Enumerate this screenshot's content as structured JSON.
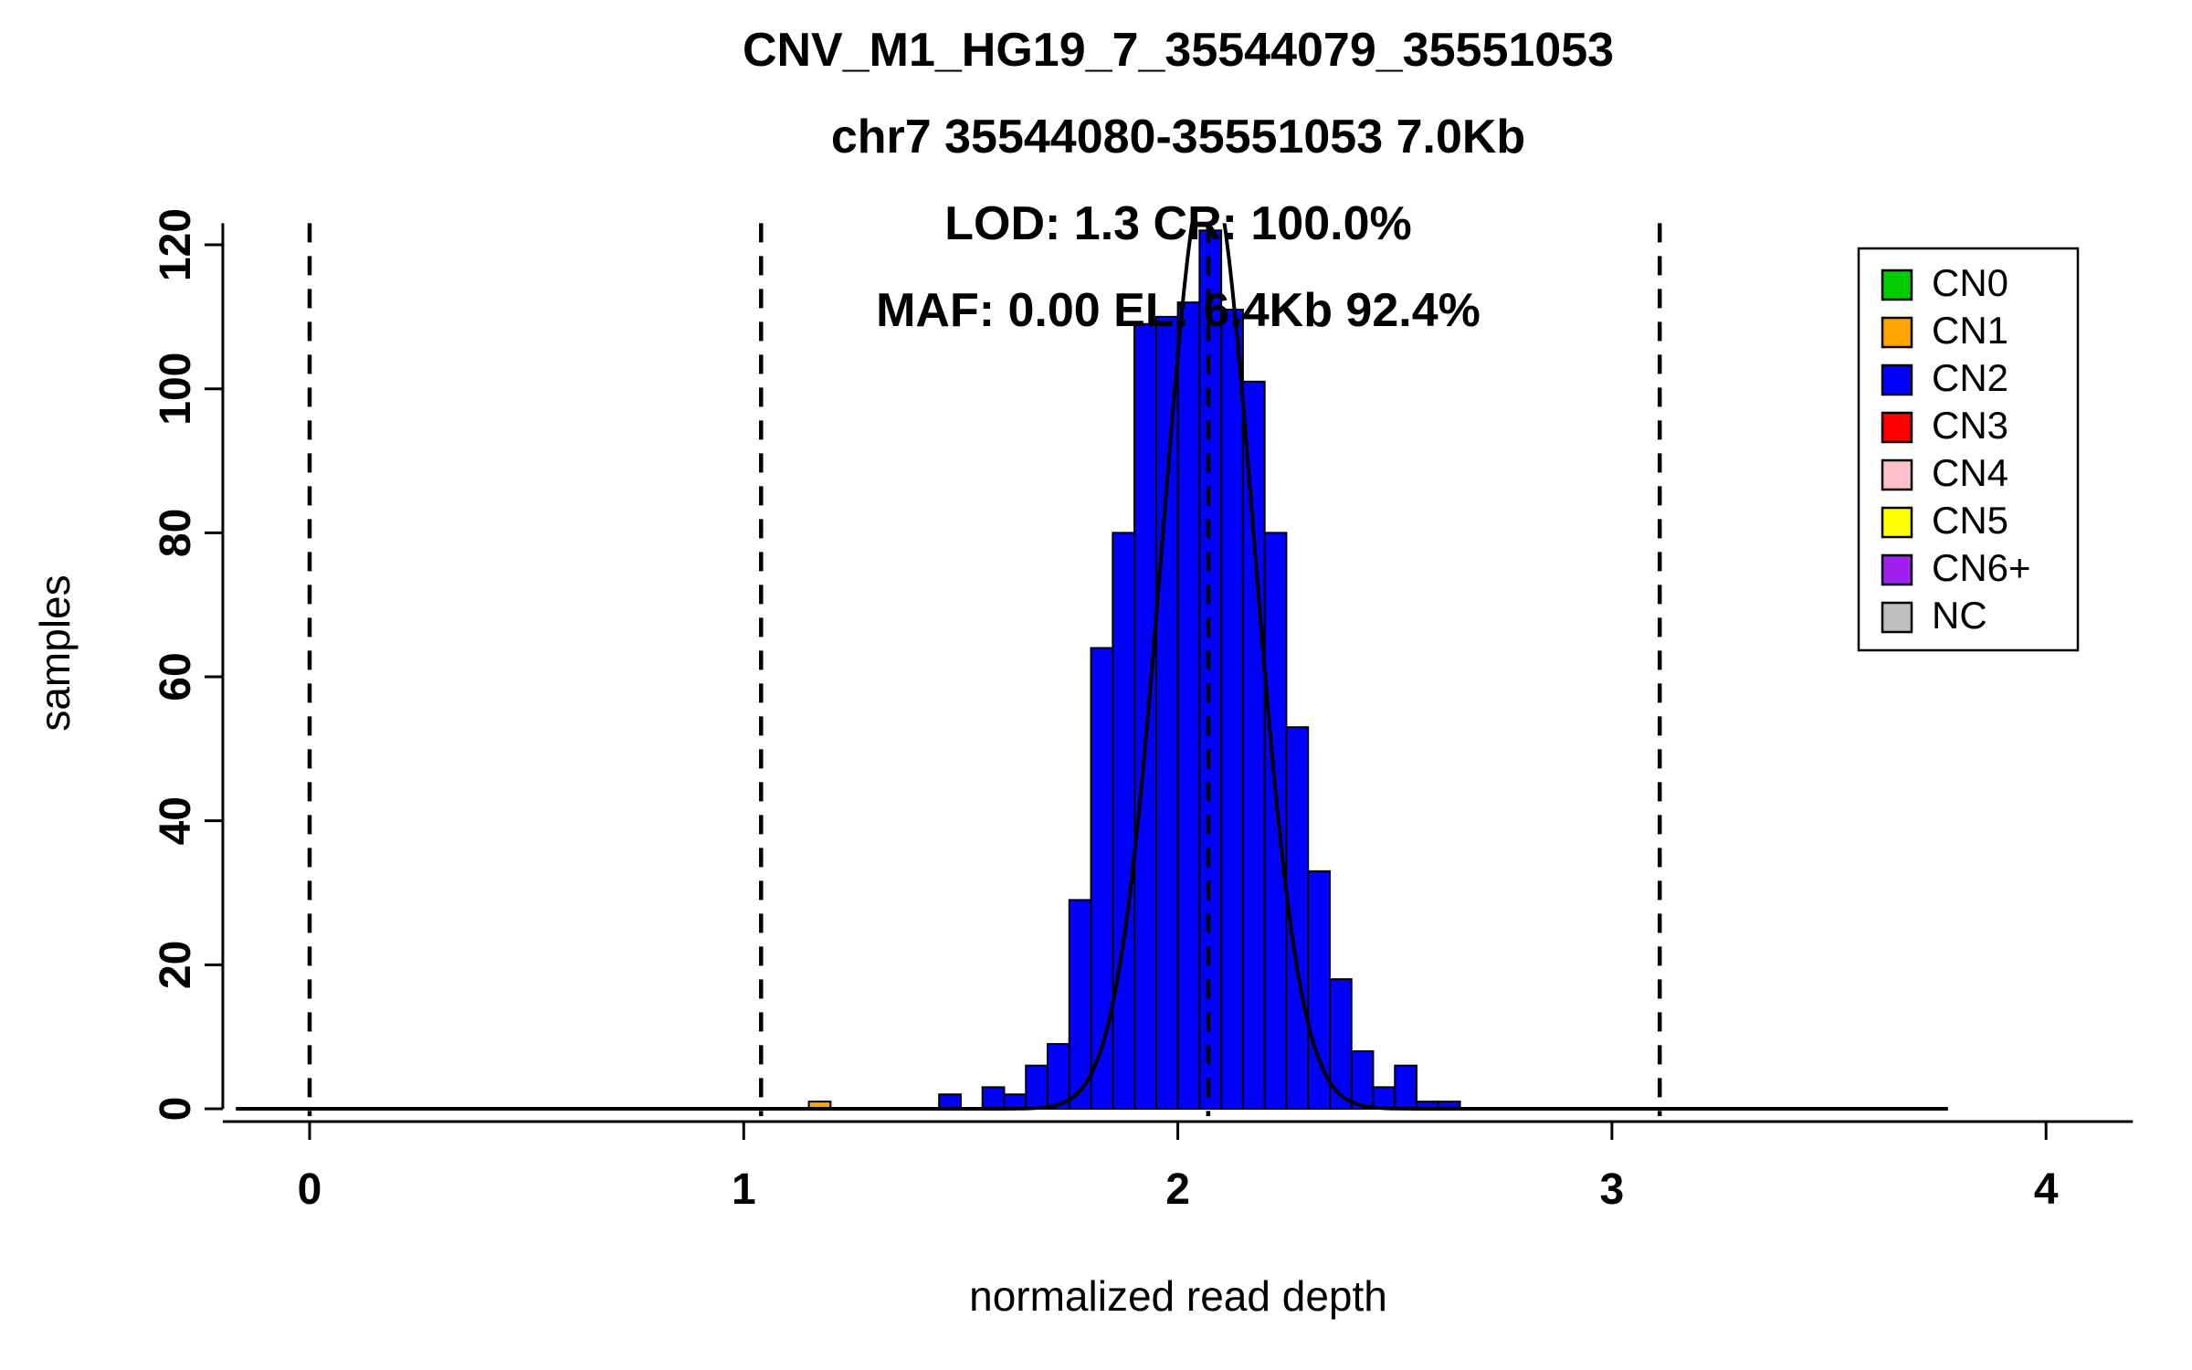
{
  "chart_data": {
    "type": "bar",
    "subtype": "histogram-with-gaussian-fit",
    "title_lines": [
      "CNV_M1_HG19_7_35544079_35551053",
      "chr7 35544080-35551053 7.0Kb",
      "LOD: 1.3 CR: 100.0%",
      "MAF: 0.00 EL: 6.4Kb 92.4%"
    ],
    "xlabel": "normalized read depth",
    "ylabel": "samples",
    "x_ticks": [
      0,
      1,
      2,
      3,
      4
    ],
    "y_ticks": [
      0,
      20,
      40,
      60,
      80,
      100,
      120
    ],
    "xlim": [
      -0.2,
      4.2
    ],
    "ylim": [
      0,
      123
    ],
    "grid": false,
    "bin_width": 0.05,
    "bins": [
      {
        "x0": 1.15,
        "height": 1,
        "cn": "CN1"
      },
      {
        "x0": 1.45,
        "height": 2,
        "cn": "CN2"
      },
      {
        "x0": 1.55,
        "height": 3,
        "cn": "CN2"
      },
      {
        "x0": 1.6,
        "height": 2,
        "cn": "CN2"
      },
      {
        "x0": 1.65,
        "height": 6,
        "cn": "CN2"
      },
      {
        "x0": 1.7,
        "height": 9,
        "cn": "CN2"
      },
      {
        "x0": 1.75,
        "height": 29,
        "cn": "CN2"
      },
      {
        "x0": 1.8,
        "height": 64,
        "cn": "CN2"
      },
      {
        "x0": 1.85,
        "height": 80,
        "cn": "CN2"
      },
      {
        "x0": 1.9,
        "height": 109,
        "cn": "CN2"
      },
      {
        "x0": 1.95,
        "height": 110,
        "cn": "CN2"
      },
      {
        "x0": 2.0,
        "height": 112,
        "cn": "CN2"
      },
      {
        "x0": 2.05,
        "height": 122,
        "cn": "CN2"
      },
      {
        "x0": 2.1,
        "height": 111,
        "cn": "CN2"
      },
      {
        "x0": 2.15,
        "height": 101,
        "cn": "CN2"
      },
      {
        "x0": 2.2,
        "height": 80,
        "cn": "CN2"
      },
      {
        "x0": 2.25,
        "height": 53,
        "cn": "CN2"
      },
      {
        "x0": 2.3,
        "height": 33,
        "cn": "CN2"
      },
      {
        "x0": 2.35,
        "height": 18,
        "cn": "CN2"
      },
      {
        "x0": 2.4,
        "height": 8,
        "cn": "CN2"
      },
      {
        "x0": 2.45,
        "height": 3,
        "cn": "CN2"
      },
      {
        "x0": 2.5,
        "height": 6,
        "cn": "CN2"
      },
      {
        "x0": 2.55,
        "height": 1,
        "cn": "CN2"
      },
      {
        "x0": 2.6,
        "height": 1,
        "cn": "CN2"
      }
    ],
    "colors": {
      "CN0": "#00CC00",
      "CN1": "#FFA500",
      "CN2": "#0000FF",
      "CN3": "#FF0000",
      "CN4": "#FFC0CB",
      "CN5": "#FFFF00",
      "CN6+": "#A020F0",
      "NC": "#BEBEBE",
      "curve": "#000000",
      "dashed_line": "#000000"
    },
    "dashed_lines_x": [
      0,
      1.04,
      2.07,
      3.11
    ],
    "fit_curve": {
      "mean": 2.07,
      "sd": 0.105,
      "peak": 131
    },
    "baseline_x": [
      -0.17,
      3.78
    ],
    "legend": {
      "position": "top-right",
      "entries": [
        {
          "label": "CN0",
          "color": "#00CC00"
        },
        {
          "label": "CN1",
          "color": "#FFA500"
        },
        {
          "label": "CN2",
          "color": "#0000FF"
        },
        {
          "label": "CN3",
          "color": "#FF0000"
        },
        {
          "label": "CN4",
          "color": "#FFC0CB"
        },
        {
          "label": "CN5",
          "color": "#FFFF00"
        },
        {
          "label": "CN6+",
          "color": "#A020F0"
        },
        {
          "label": "NC",
          "color": "#BEBEBE"
        }
      ]
    }
  }
}
